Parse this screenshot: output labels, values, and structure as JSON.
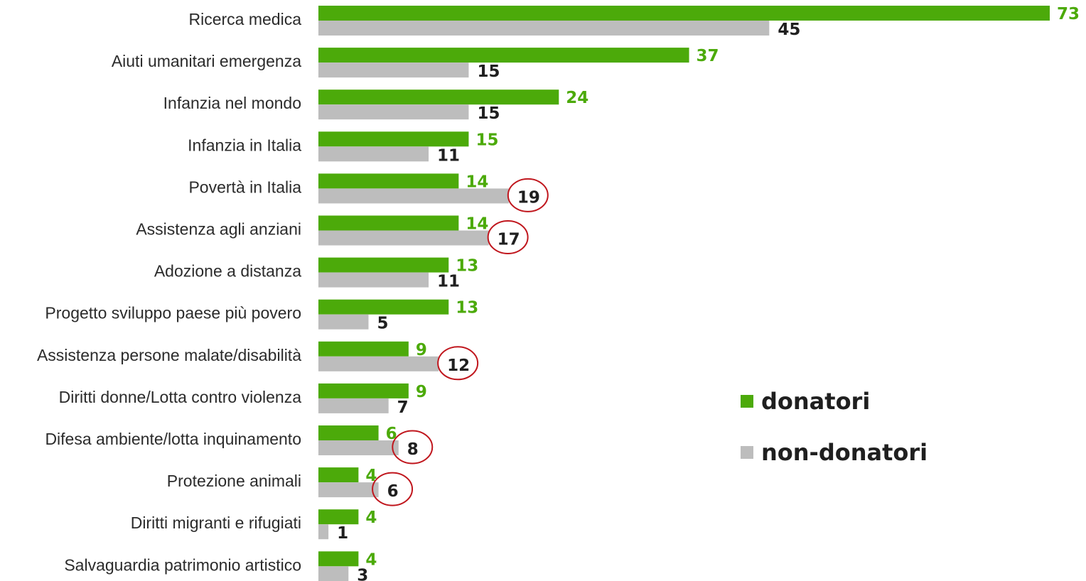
{
  "chart_data": {
    "type": "bar",
    "orientation": "horizontal",
    "categories": [
      "Ricerca medica",
      "Aiuti umanitari emergenza",
      "Infanzia nel mondo",
      "Infanzia in Italia",
      "Povertà in Italia",
      "Assistenza agli anziani",
      "Adozione a distanza",
      "Progetto sviluppo paese più povero",
      "Assistenza persone malate/disabilità",
      "Diritti donne/Lotta contro violenza",
      "Difesa ambiente/lotta inquinamento",
      "Protezione animali",
      "Diritti migranti e rifugiati",
      "Salvaguardia patrimonio artistico"
    ],
    "series": [
      {
        "name": "donatori",
        "color": "#4caa0a",
        "values": [
          73,
          37,
          24,
          15,
          14,
          14,
          13,
          13,
          9,
          9,
          6,
          4,
          4,
          4
        ]
      },
      {
        "name": "non-donatori",
        "color": "#bdbdbd",
        "values": [
          45,
          15,
          15,
          11,
          19,
          17,
          11,
          5,
          12,
          7,
          8,
          6,
          1,
          3
        ]
      }
    ],
    "highlighted_non_donatori": [
      "Povertà in Italia",
      "Assistenza agli anziani",
      "Assistenza persone malate/disabilità",
      "Difesa ambiente/lotta inquinamento",
      "Protezione animali"
    ],
    "highlight_color": "#c0161d",
    "value_label_colors": {
      "donatori": "#4caa0a",
      "non-donatori": "#1f1f1f"
    },
    "xlim": [
      0,
      73
    ],
    "grid": false,
    "legend_position": "right"
  },
  "legend": {
    "items": [
      {
        "label": "donatori",
        "color": "#4caa0a"
      },
      {
        "label": "non-donatori",
        "color": "#bdbdbd"
      }
    ]
  }
}
